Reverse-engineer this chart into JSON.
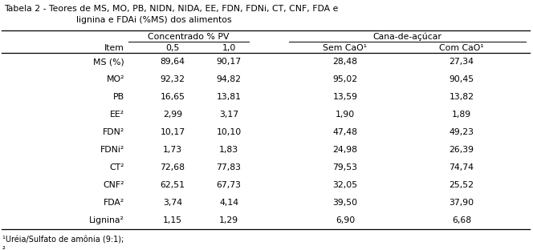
{
  "title_line1": "Tabela 2 - Teores de MS, MO, PB, NIDN, NIDA, EE, FDN, FDNi, CT, CNF, FDA e",
  "title_line2": "lignina e FDAi (%MS) dos alimentos",
  "col_group1": "Concentrado % PV",
  "col_group2": "Cana-de-açúcar",
  "col_headers": [
    "Item",
    "0,5",
    "1,0",
    "Sem CaO¹",
    "Com CaO¹"
  ],
  "rows": [
    [
      "MS (%)",
      "89,64",
      "90,17",
      "28,48",
      "27,34"
    ],
    [
      "MO²",
      "92,32",
      "94,82",
      "95,02",
      "90,45"
    ],
    [
      "PB",
      "16,65",
      "13,81",
      "13,59",
      "13,82"
    ],
    [
      "EE²",
      "2,99",
      "3,17",
      "1,90",
      "1,89"
    ],
    [
      "FDN²",
      "10,17",
      "10,10",
      "47,48",
      "49,23"
    ],
    [
      "FDNi²",
      "1,73",
      "1,83",
      "24,98",
      "26,39"
    ],
    [
      "CT²",
      "72,68",
      "77,83",
      "79,53",
      "74,74"
    ],
    [
      "CNF²",
      "62,51",
      "67,73",
      "32,05",
      "25,52"
    ],
    [
      "FDA²",
      "3,74",
      "4,14",
      "39,50",
      "37,90"
    ],
    [
      "Lignina²",
      "1,15",
      "1,29",
      "6,90",
      "6,68"
    ]
  ],
  "footnote1": "¹Uréia/Sulfato de amônia (9:1);",
  "footnote2": "²",
  "fontsize": 7.8,
  "footnote_fontsize": 7.0
}
